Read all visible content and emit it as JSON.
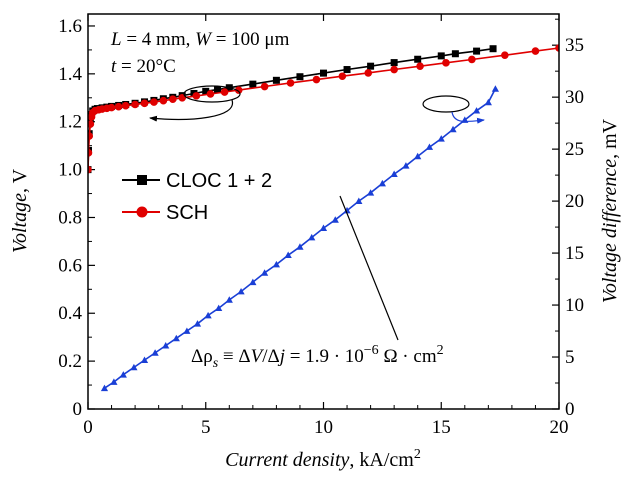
{
  "chart_data": {
    "type": "line",
    "x_axis": {
      "label_italic": "Current density",
      "label_unit": ", kA/cm",
      "label_unit_sup": "2",
      "range": [
        0,
        20
      ],
      "ticks": [
        0,
        5,
        10,
        15,
        20
      ],
      "tick_labels": [
        "0",
        "5",
        "10",
        "15",
        "20"
      ]
    },
    "y_axis_left": {
      "label_italic": "Voltage",
      "label_unit": ", V",
      "range": [
        0,
        1.65
      ],
      "ticks": [
        0,
        0.2,
        0.4,
        0.6,
        0.8,
        1.0,
        1.2,
        1.4,
        1.6
      ],
      "tick_labels": [
        "0",
        "0.2",
        "0.4",
        "0.6",
        "0.8",
        "1.0",
        "1.2",
        "1.4",
        "1.6"
      ]
    },
    "y_axis_right": {
      "label_italic": "Voltage difference",
      "label_unit": ", mV",
      "range": [
        0,
        38
      ],
      "ticks": [
        0,
        5,
        10,
        15,
        20,
        25,
        30,
        35
      ],
      "tick_labels": [
        "0",
        "5",
        "10",
        "15",
        "20",
        "25",
        "30",
        "35"
      ]
    },
    "conditions": {
      "L_sym": "L",
      "L_val": " = 4 mm, ",
      "W_sym": "W",
      "W_val": " = 100 μm",
      "t_sym": "t",
      "t_val": " = 20°C"
    },
    "annotation": {
      "delta_rho": "Δρ",
      "sub_s": "s",
      "eq1": " ≡ Δ",
      "V": "V",
      "slash_delta": "/Δ",
      "j": "j",
      "eq2": " = 1.9 · 10",
      "exp": "−6",
      "unit": " Ω · cm",
      "unit_sup": "2"
    },
    "series": [
      {
        "name": "CLOC 1 + 2",
        "axis": "left",
        "color": "#000000",
        "marker": "square",
        "x": [
          0.0,
          0.02,
          0.05,
          0.1,
          0.15,
          0.2,
          0.3,
          0.4,
          0.6,
          0.8,
          1.0,
          1.3,
          1.6,
          2.0,
          2.4,
          2.8,
          3.2,
          3.6,
          4.0,
          4.5,
          5.0,
          5.5,
          6.0,
          7.0,
          8.0,
          9.0,
          10.0,
          11.0,
          12.0,
          13.0,
          14.0,
          15.0,
          15.6,
          16.5,
          17.2
        ],
        "y": [
          1.0,
          1.08,
          1.15,
          1.2,
          1.23,
          1.245,
          1.252,
          1.255,
          1.258,
          1.261,
          1.264,
          1.268,
          1.272,
          1.277,
          1.283,
          1.289,
          1.296,
          1.302,
          1.309,
          1.318,
          1.327,
          1.334,
          1.342,
          1.357,
          1.373,
          1.388,
          1.403,
          1.418,
          1.432,
          1.447,
          1.461,
          1.475,
          1.484,
          1.495,
          1.505
        ]
      },
      {
        "name": "SCH",
        "axis": "left",
        "color": "#e00000",
        "marker": "circle",
        "x": [
          0.0,
          0.02,
          0.05,
          0.1,
          0.15,
          0.2,
          0.3,
          0.45,
          0.6,
          0.8,
          1.0,
          1.3,
          1.6,
          2.0,
          2.4,
          2.8,
          3.2,
          3.6,
          4.0,
          4.6,
          5.2,
          5.8,
          6.4,
          7.5,
          8.6,
          9.7,
          10.8,
          11.9,
          13.0,
          14.1,
          15.2,
          16.3,
          17.7,
          19.0,
          20.0
        ],
        "y": [
          1.0,
          1.07,
          1.14,
          1.19,
          1.22,
          1.238,
          1.246,
          1.25,
          1.253,
          1.256,
          1.259,
          1.263,
          1.267,
          1.272,
          1.277,
          1.282,
          1.288,
          1.294,
          1.3,
          1.308,
          1.316,
          1.324,
          1.332,
          1.347,
          1.362,
          1.376,
          1.39,
          1.404,
          1.418,
          1.432,
          1.446,
          1.46,
          1.478,
          1.495,
          1.508
        ]
      },
      {
        "name": "Voltage difference",
        "axis": "right",
        "color": "#1a3fd6",
        "marker": "triangle",
        "x": [
          0.7,
          1.1,
          1.5,
          1.95,
          2.4,
          2.85,
          3.3,
          3.75,
          4.2,
          4.65,
          5.1,
          5.55,
          6.0,
          6.5,
          7.0,
          7.5,
          8.0,
          8.5,
          9.0,
          9.5,
          10.0,
          10.5,
          11.0,
          11.5,
          12.0,
          12.5,
          13.0,
          13.5,
          14.0,
          14.5,
          15.0,
          15.5,
          16.0,
          16.5,
          17.0,
          17.3
        ],
        "y": [
          2.0,
          2.6,
          3.3,
          4.0,
          4.7,
          5.4,
          6.1,
          6.8,
          7.5,
          8.2,
          9.0,
          9.7,
          10.5,
          11.3,
          12.2,
          13.1,
          13.9,
          14.8,
          15.6,
          16.5,
          17.4,
          18.2,
          19.1,
          20.0,
          20.8,
          21.7,
          22.6,
          23.4,
          24.3,
          25.2,
          26.0,
          26.9,
          27.8,
          28.7,
          29.5,
          30.8
        ]
      }
    ]
  }
}
